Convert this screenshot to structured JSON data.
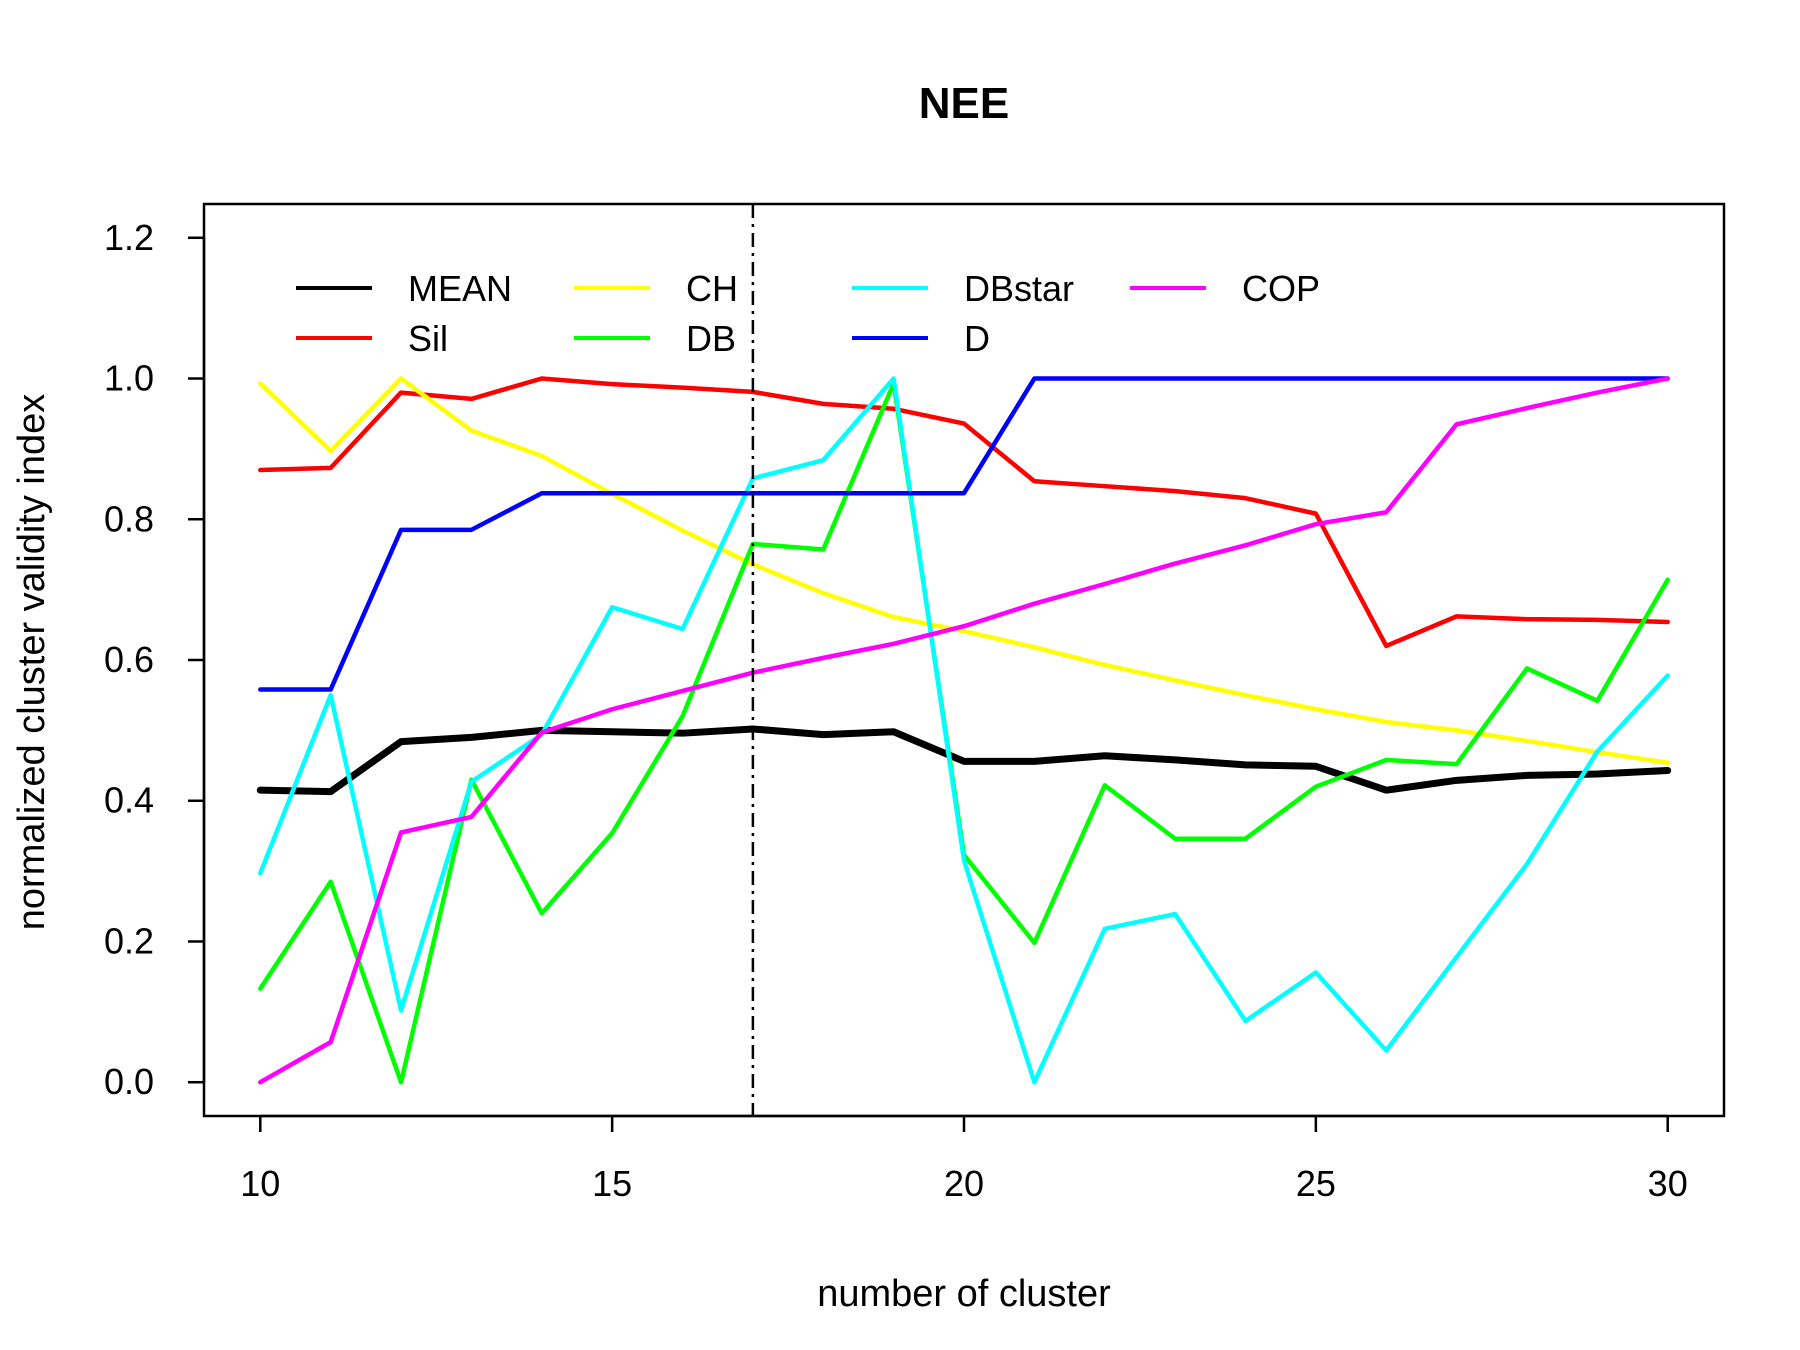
{
  "chart_data": {
    "type": "line",
    "title": "NEE",
    "xlabel": "number of cluster",
    "ylabel": "normalized cluster validity index",
    "xlim": [
      9.2,
      30.8
    ],
    "ylim": [
      -0.048,
      1.248
    ],
    "xticks": [
      10,
      15,
      20,
      25,
      30
    ],
    "yticks": [
      0.0,
      0.2,
      0.4,
      0.6,
      0.8,
      1.0,
      1.2
    ],
    "ytick_labels": [
      "0.0",
      "0.2",
      "0.4",
      "0.6",
      "0.8",
      "1.0",
      "1.2"
    ],
    "vline": 17,
    "legend_position": "top-left, inside, 4 columns",
    "x": [
      10,
      11,
      12,
      13,
      14,
      15,
      16,
      17,
      18,
      19,
      20,
      21,
      22,
      23,
      24,
      25,
      26,
      27,
      28,
      29,
      30
    ],
    "series": [
      {
        "name": "MEAN",
        "color": "#000000",
        "width": 7,
        "values": [
          0.415,
          0.413,
          0.484,
          0.49,
          0.5,
          0.498,
          0.496,
          0.502,
          0.494,
          0.498,
          0.456,
          0.456,
          0.464,
          0.458,
          0.451,
          0.449,
          0.415,
          0.429,
          0.436,
          0.438,
          0.443
        ]
      },
      {
        "name": "Sil",
        "color": "#ff0000",
        "width": 4.5,
        "values": [
          0.87,
          0.873,
          0.98,
          0.971,
          1.0,
          0.992,
          0.987,
          0.981,
          0.964,
          0.957,
          0.936,
          0.854,
          0.847,
          0.84,
          0.83,
          0.808,
          0.62,
          0.662,
          0.658,
          0.657,
          0.654
        ]
      },
      {
        "name": "CH",
        "color": "#ffff00",
        "width": 4.5,
        "values": [
          0.993,
          0.897,
          1.0,
          0.926,
          0.89,
          0.836,
          0.784,
          0.736,
          0.695,
          0.661,
          0.641,
          0.618,
          0.593,
          0.571,
          0.55,
          0.53,
          0.512,
          0.5,
          0.485,
          0.469,
          0.454
        ]
      },
      {
        "name": "DB",
        "color": "#00ff00",
        "width": 4.5,
        "values": [
          0.133,
          0.285,
          0.0,
          0.43,
          0.24,
          0.354,
          0.52,
          0.765,
          0.757,
          0.993,
          0.323,
          0.198,
          0.422,
          0.346,
          0.346,
          0.42,
          0.458,
          0.452,
          0.588,
          0.542,
          0.714
        ]
      },
      {
        "name": "DBstar",
        "color": "#00ffff",
        "width": 4.5,
        "values": [
          0.297,
          0.55,
          0.102,
          0.427,
          0.494,
          0.675,
          0.644,
          0.858,
          0.884,
          1.0,
          0.315,
          0.0,
          0.218,
          0.239,
          0.087,
          0.156,
          0.045,
          0.178,
          0.31,
          0.47,
          0.578
        ]
      },
      {
        "name": "D",
        "color": "#0000ff",
        "width": 4.5,
        "values": [
          0.558,
          0.558,
          0.785,
          0.785,
          0.837,
          0.837,
          0.837,
          0.837,
          0.837,
          0.837,
          0.837,
          1.0,
          1.0,
          1.0,
          1.0,
          1.0,
          1.0,
          1.0,
          1.0,
          1.0,
          1.0
        ]
      },
      {
        "name": "COP",
        "color": "#ff00ff",
        "width": 4.5,
        "values": [
          0.0,
          0.057,
          0.355,
          0.377,
          0.497,
          0.53,
          0.556,
          0.582,
          0.603,
          0.623,
          0.648,
          0.68,
          0.708,
          0.737,
          0.763,
          0.793,
          0.81,
          0.935,
          0.958,
          0.98,
          1.0
        ]
      }
    ],
    "legend_order": [
      "MEAN",
      "Sil",
      "CH",
      "DB",
      "DBstar",
      "D",
      "COP"
    ]
  }
}
